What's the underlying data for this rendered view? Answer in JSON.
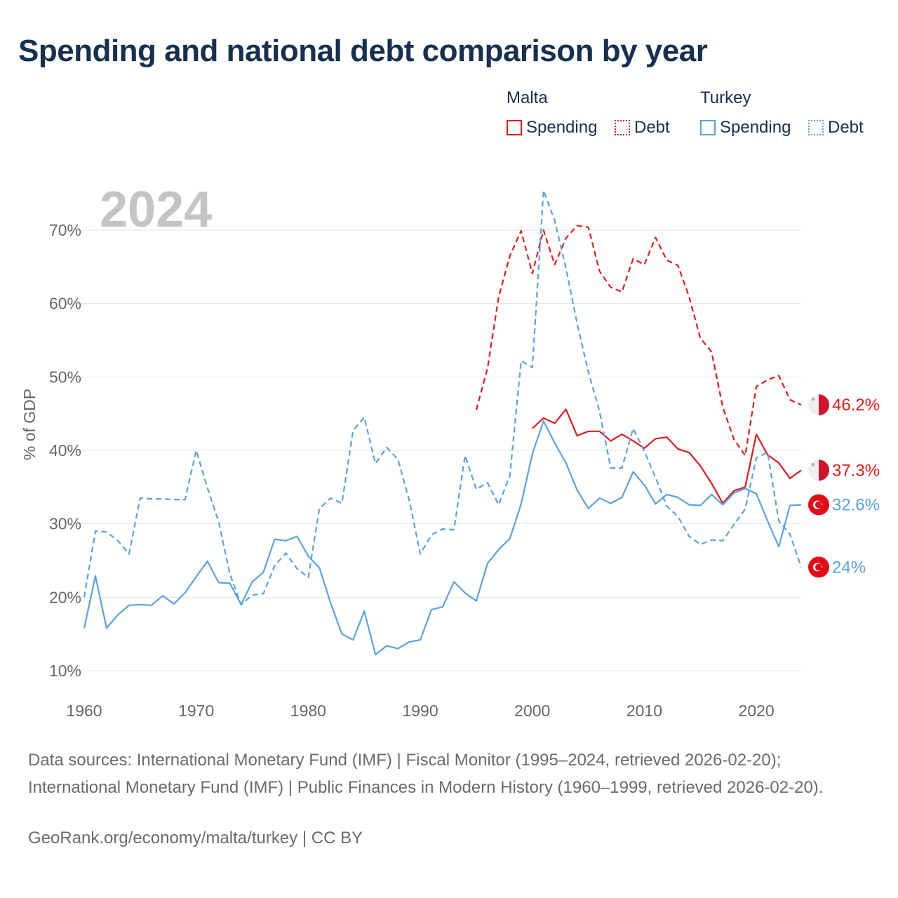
{
  "title": "Spending and national debt comparison by year",
  "legend": {
    "malta": {
      "label": "Malta",
      "spending": "Spending",
      "debt": "Debt",
      "color": "#e31a1c"
    },
    "turkey": {
      "label": "Turkey",
      "spending": "Spending",
      "debt": "Debt",
      "color": "#5aa2e0"
    }
  },
  "year_label": "2024",
  "footer": {
    "sources": "Data sources: International Monetary Fund (IMF) | Fiscal Monitor (1995–2024, retrieved 2026-02-20); International Monetary Fund (IMF) | Public Finances in Modern History (1960–1999, retrieved 2026-02-20).",
    "credit": "GeoRank.org/economy/malta/turkey | CC BY"
  },
  "chart_data": {
    "type": "line",
    "title": "Spending and national debt comparison by year",
    "ylabel": "% of GDP",
    "xlabel": "",
    "xlim": [
      1960,
      2024
    ],
    "ylim": [
      10,
      75
    ],
    "xticks": [
      1960,
      1970,
      1980,
      1990,
      2000,
      2010,
      2020
    ],
    "yticks": [
      10,
      20,
      30,
      40,
      50,
      60,
      70
    ],
    "ytick_labels": [
      "10%",
      "20%",
      "30%",
      "40%",
      "50%",
      "60%",
      "70%"
    ],
    "series": [
      {
        "name": "Malta Spending",
        "country": "Malta",
        "metric": "Spending",
        "color": "#e31a1c",
        "dash": false,
        "end_label": "37.3%",
        "points": [
          [
            2000,
            43.0
          ],
          [
            2001,
            44.4
          ],
          [
            2002,
            43.7
          ],
          [
            2003,
            45.6
          ],
          [
            2004,
            42.0
          ],
          [
            2005,
            42.6
          ],
          [
            2006,
            42.6
          ],
          [
            2007,
            41.3
          ],
          [
            2008,
            42.2
          ],
          [
            2009,
            41.3
          ],
          [
            2010,
            40.3
          ],
          [
            2011,
            41.6
          ],
          [
            2012,
            41.8
          ],
          [
            2013,
            40.2
          ],
          [
            2014,
            39.7
          ],
          [
            2015,
            37.9
          ],
          [
            2016,
            35.5
          ],
          [
            2017,
            32.8
          ],
          [
            2018,
            34.5
          ],
          [
            2019,
            35.0
          ],
          [
            2020,
            42.2
          ],
          [
            2021,
            39.4
          ],
          [
            2022,
            38.3
          ],
          [
            2023,
            36.2
          ],
          [
            2024,
            37.3
          ]
        ]
      },
      {
        "name": "Malta Debt",
        "country": "Malta",
        "metric": "Debt",
        "color": "#e31a1c",
        "dash": true,
        "end_label": "46.2%",
        "points": [
          [
            1995,
            45.5
          ],
          [
            1996,
            51.2
          ],
          [
            1997,
            60.9
          ],
          [
            1998,
            66.5
          ],
          [
            1999,
            69.9
          ],
          [
            2000,
            64.1
          ],
          [
            2001,
            70.0
          ],
          [
            2002,
            65.3
          ],
          [
            2003,
            68.9
          ],
          [
            2004,
            70.6
          ],
          [
            2005,
            70.4
          ],
          [
            2006,
            64.4
          ],
          [
            2007,
            62.2
          ],
          [
            2008,
            61.6
          ],
          [
            2009,
            66.1
          ],
          [
            2010,
            65.3
          ],
          [
            2011,
            69.0
          ],
          [
            2012,
            65.9
          ],
          [
            2013,
            65.2
          ],
          [
            2014,
            60.9
          ],
          [
            2015,
            55.3
          ],
          [
            2016,
            53.4
          ],
          [
            2017,
            45.9
          ],
          [
            2018,
            41.5
          ],
          [
            2019,
            39.3
          ],
          [
            2020,
            48.7
          ],
          [
            2021,
            49.6
          ],
          [
            2022,
            50.2
          ],
          [
            2023,
            46.9
          ],
          [
            2024,
            46.2
          ]
        ]
      },
      {
        "name": "Turkey Spending",
        "country": "Turkey",
        "metric": "Spending",
        "color": "#5aa2e0",
        "dash": false,
        "end_label": "32.6%",
        "points": [
          [
            1960,
            15.8
          ],
          [
            1961,
            22.9
          ],
          [
            1962,
            15.8
          ],
          [
            1963,
            17.6
          ],
          [
            1964,
            18.9
          ],
          [
            1965,
            19.0
          ],
          [
            1966,
            18.9
          ],
          [
            1967,
            20.2
          ],
          [
            1968,
            19.1
          ],
          [
            1969,
            20.6
          ],
          [
            1970,
            22.8
          ],
          [
            1971,
            24.9
          ],
          [
            1972,
            22.0
          ],
          [
            1973,
            21.9
          ],
          [
            1974,
            19.0
          ],
          [
            1975,
            22.1
          ],
          [
            1976,
            23.4
          ],
          [
            1977,
            27.9
          ],
          [
            1978,
            27.7
          ],
          [
            1979,
            28.3
          ],
          [
            1980,
            25.6
          ],
          [
            1981,
            24.0
          ],
          [
            1982,
            19.2
          ],
          [
            1983,
            15.0
          ],
          [
            1984,
            14.2
          ],
          [
            1985,
            18.1
          ],
          [
            1986,
            12.2
          ],
          [
            1987,
            13.4
          ],
          [
            1988,
            13.0
          ],
          [
            1989,
            13.9
          ],
          [
            1990,
            14.2
          ],
          [
            1991,
            18.3
          ],
          [
            1992,
            18.7
          ],
          [
            1993,
            22.1
          ],
          [
            1994,
            20.6
          ],
          [
            1995,
            19.5
          ],
          [
            1996,
            24.6
          ],
          [
            1997,
            26.5
          ],
          [
            1998,
            28.0
          ],
          [
            1999,
            32.7
          ],
          [
            2000,
            39.5
          ],
          [
            2001,
            44.0
          ],
          [
            2002,
            41.0
          ],
          [
            2003,
            38.3
          ],
          [
            2004,
            34.6
          ],
          [
            2005,
            32.1
          ],
          [
            2006,
            33.5
          ],
          [
            2007,
            32.8
          ],
          [
            2008,
            33.6
          ],
          [
            2009,
            37.1
          ],
          [
            2010,
            35.3
          ],
          [
            2011,
            32.7
          ],
          [
            2012,
            34.0
          ],
          [
            2013,
            33.6
          ],
          [
            2014,
            32.6
          ],
          [
            2015,
            32.5
          ],
          [
            2016,
            34.0
          ],
          [
            2017,
            32.6
          ],
          [
            2018,
            34.2
          ],
          [
            2019,
            34.8
          ],
          [
            2020,
            34.1
          ],
          [
            2021,
            30.4
          ],
          [
            2022,
            26.9
          ],
          [
            2023,
            32.5
          ],
          [
            2024,
            32.6
          ]
        ]
      },
      {
        "name": "Turkey Debt",
        "country": "Turkey",
        "metric": "Debt",
        "color": "#5aa2e0",
        "dash": true,
        "end_label": "24%",
        "points": [
          [
            1960,
            20.0
          ],
          [
            1961,
            29.0
          ],
          [
            1962,
            28.9
          ],
          [
            1963,
            27.7
          ],
          [
            1964,
            25.9
          ],
          [
            1965,
            33.5
          ],
          [
            1966,
            33.4
          ],
          [
            1967,
            33.4
          ],
          [
            1968,
            33.3
          ],
          [
            1969,
            33.3
          ],
          [
            1970,
            40.0
          ],
          [
            1971,
            34.9
          ],
          [
            1972,
            30.3
          ],
          [
            1973,
            23.2
          ],
          [
            1974,
            19.0
          ],
          [
            1975,
            20.3
          ],
          [
            1976,
            20.5
          ],
          [
            1977,
            24.3
          ],
          [
            1978,
            26.0
          ],
          [
            1979,
            23.9
          ],
          [
            1980,
            22.7
          ],
          [
            1981,
            32.1
          ],
          [
            1982,
            33.5
          ],
          [
            1983,
            32.8
          ],
          [
            1984,
            42.7
          ],
          [
            1985,
            44.5
          ],
          [
            1986,
            38.2
          ],
          [
            1987,
            40.4
          ],
          [
            1988,
            38.8
          ],
          [
            1989,
            33.3
          ],
          [
            1990,
            25.9
          ],
          [
            1991,
            28.5
          ],
          [
            1992,
            29.3
          ],
          [
            1993,
            29.2
          ],
          [
            1994,
            39.3
          ],
          [
            1995,
            34.7
          ],
          [
            1996,
            35.6
          ],
          [
            1997,
            32.6
          ],
          [
            1998,
            36.6
          ],
          [
            1999,
            52.2
          ],
          [
            2000,
            51.3
          ],
          [
            2001,
            75.4
          ],
          [
            2002,
            71.3
          ],
          [
            2003,
            64.8
          ],
          [
            2004,
            57.3
          ],
          [
            2005,
            50.7
          ],
          [
            2006,
            45.3
          ],
          [
            2007,
            37.6
          ],
          [
            2008,
            37.6
          ],
          [
            2009,
            43.0
          ],
          [
            2010,
            39.9
          ],
          [
            2011,
            36.3
          ],
          [
            2012,
            32.4
          ],
          [
            2013,
            31.0
          ],
          [
            2014,
            28.3
          ],
          [
            2015,
            27.2
          ],
          [
            2016,
            27.8
          ],
          [
            2017,
            27.7
          ],
          [
            2018,
            29.9
          ],
          [
            2019,
            32.0
          ],
          [
            2020,
            39.0
          ],
          [
            2021,
            39.7
          ],
          [
            2022,
            30.4
          ],
          [
            2023,
            28.6
          ],
          [
            2024,
            24.1
          ]
        ]
      }
    ]
  }
}
